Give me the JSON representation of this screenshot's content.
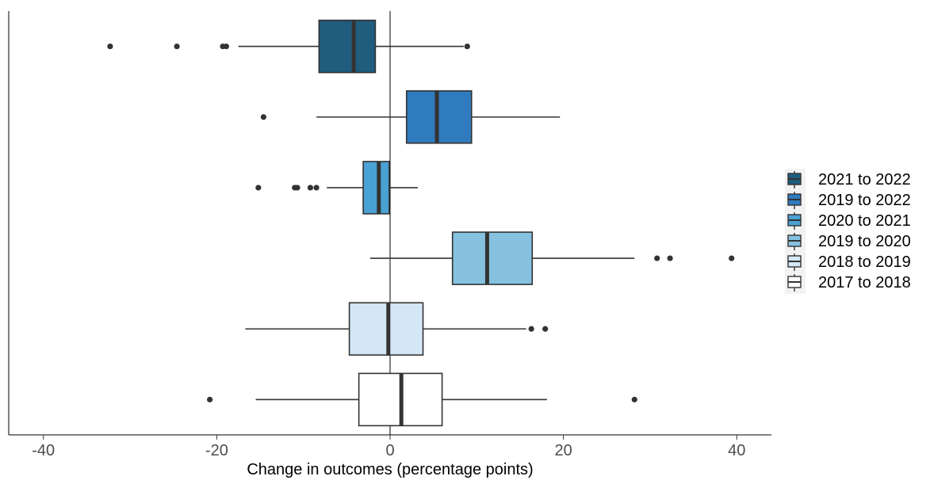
{
  "chart_data": {
    "type": "boxplot",
    "orientation": "horizontal",
    "title": "",
    "xlabel": "Change in outcomes (percentage points)",
    "ylabel": "",
    "xlim": [
      -44,
      44
    ],
    "xticks": [
      -40,
      -20,
      0,
      20,
      40
    ],
    "xtick_labels": [
      "-40",
      "-20",
      "0",
      "20",
      "40"
    ],
    "reference_line": 0,
    "grid": false,
    "legend": {
      "position": "right"
    },
    "series": [
      {
        "name": "2021 to 2022",
        "color": "#1f5c7e",
        "min": -17.5,
        "q1": -8.2,
        "median": -4.2,
        "q3": -1.7,
        "max": 8.5,
        "outliers": [
          -32.3,
          -24.6,
          -19.3,
          -18.9,
          8.9
        ]
      },
      {
        "name": "2019 to 2022",
        "color": "#2f7bbd",
        "min": -8.5,
        "q1": 1.9,
        "median": 5.4,
        "q3": 9.4,
        "max": 19.6,
        "outliers": [
          -14.6
        ]
      },
      {
        "name": "2020 to 2021",
        "color": "#4aa1d3",
        "min": -7.3,
        "q1": -3.1,
        "median": -1.3,
        "q3": -0.1,
        "max": 3.2,
        "outliers": [
          -15.2,
          -11.0,
          -10.7,
          -9.2,
          -8.5
        ]
      },
      {
        "name": "2019 to 2020",
        "color": "#86c1e0",
        "min": -2.3,
        "q1": 7.2,
        "median": 11.2,
        "q3": 16.4,
        "max": 28.2,
        "outliers": [
          30.8,
          32.3,
          39.4
        ]
      },
      {
        "name": "2018 to 2019",
        "color": "#d4e7f4",
        "min": -16.7,
        "q1": -4.7,
        "median": -0.2,
        "q3": 3.8,
        "max": 15.7,
        "outliers": [
          16.3,
          17.9
        ]
      },
      {
        "name": "2017 to 2018",
        "color": "#ffffff",
        "min": -15.5,
        "q1": -3.6,
        "median": 1.3,
        "q3": 6.0,
        "max": 18.1,
        "outliers": [
          -20.8,
          28.2
        ]
      }
    ]
  }
}
